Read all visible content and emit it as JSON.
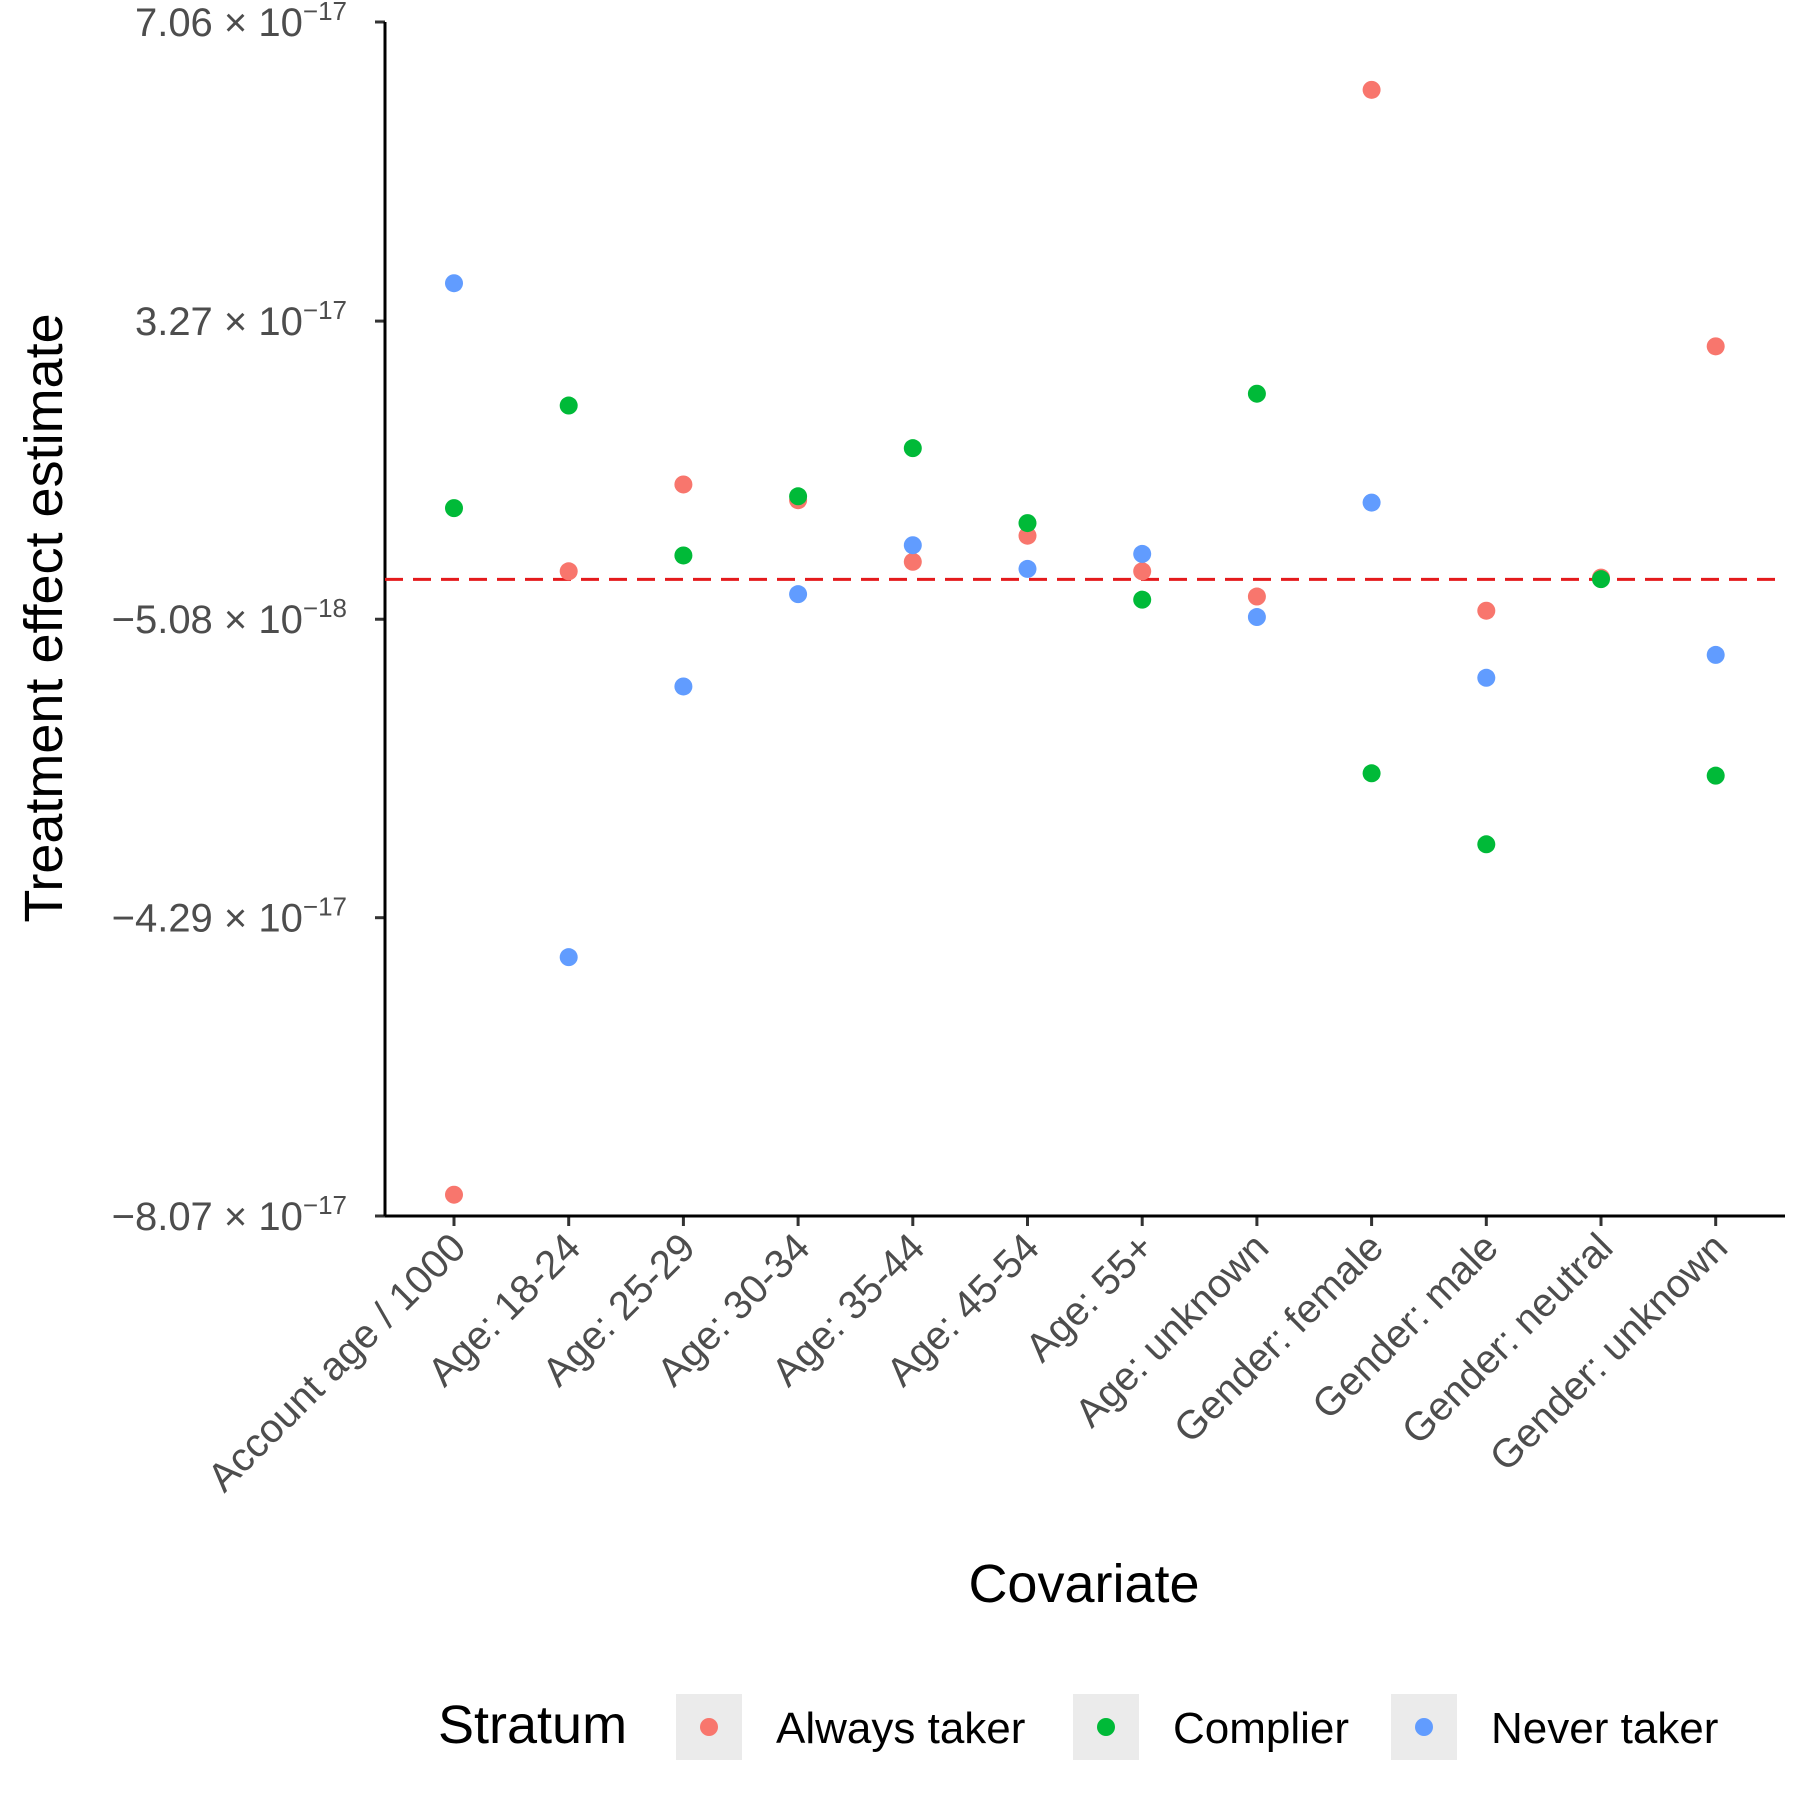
{
  "chart_data": {
    "type": "scatter",
    "xlabel": "Covariate",
    "ylabel": "Treatment effect estimate",
    "categories": [
      "Account age / 1000",
      "Age: 18-24",
      "Age: 25-29",
      "Age: 30-34",
      "Age: 35-44",
      "Age: 45-54",
      "Age: 55+",
      "Age: unknown",
      "Gender: female",
      "Gender: male",
      "Gender: neutral",
      "Gender: unknown"
    ],
    "ylim": [
      -8.07e-17,
      7.06e-17
    ],
    "y_ticks": [
      {
        "value": 7.06e-17,
        "mantissa": "7.06",
        "exponent": "−17"
      },
      {
        "value": 3.27e-17,
        "mantissa": "3.27",
        "exponent": "−17"
      },
      {
        "value": -5.08e-18,
        "mantissa": "−5.08",
        "exponent": "−18"
      },
      {
        "value": -4.29e-17,
        "mantissa": "−4.29",
        "exponent": "−17"
      },
      {
        "value": -8.07e-17,
        "mantissa": "−8.07",
        "exponent": "−17"
      }
    ],
    "reference_line": {
      "y": -3e-20,
      "color": "#e41a1c",
      "style": "dashed"
    },
    "grid": false,
    "legend": {
      "title": "Stratum",
      "position": "bottom"
    },
    "series": [
      {
        "name": "Always taker",
        "color": "#F8766D",
        "values": [
          -7.8e-17,
          1e-18,
          1.2e-17,
          1e-17,
          2.2e-18,
          5.5e-18,
          1e-18,
          -2.2e-18,
          6.2e-17,
          -4e-18,
          2e-19,
          2.95e-17
        ]
      },
      {
        "name": "Complier",
        "color": "#00BA38",
        "values": [
          9e-18,
          2.2e-17,
          3e-18,
          1.05e-17,
          1.66e-17,
          7.1e-18,
          -2.6e-18,
          2.35e-17,
          -2.46e-17,
          -3.36e-17,
          0.0,
          -2.49e-17
        ]
      },
      {
        "name": "Never taker",
        "color": "#619CFF",
        "values": [
          3.75e-17,
          -4.79e-17,
          -1.36e-17,
          -1.9e-18,
          4.3e-18,
          1.3e-18,
          3.2e-18,
          -4.8e-18,
          9.7e-18,
          -1.25e-17,
          null,
          -9.6e-18
        ]
      }
    ]
  }
}
